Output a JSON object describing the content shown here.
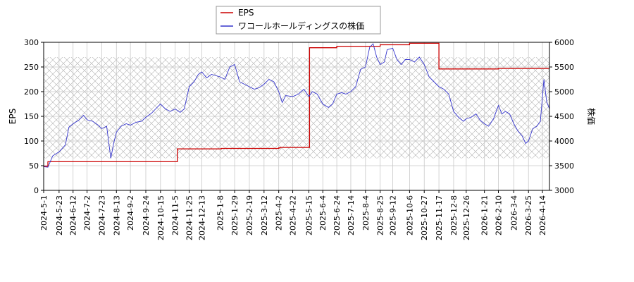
{
  "chart_data": {
    "type": "line",
    "legend": {
      "placement": "top-center",
      "entries": [
        {
          "label": "EPS",
          "color": "#cc0000"
        },
        {
          "label": "ワコールホールディングスの株価",
          "color": "#3333cc"
        }
      ]
    },
    "left_axis": {
      "label": "EPS",
      "ylim": [
        0,
        300
      ],
      "ticks": [
        "0",
        "50",
        "100",
        "150",
        "200",
        "250",
        "300"
      ]
    },
    "right_axis": {
      "label": "株価",
      "ylim": [
        3000,
        6000
      ],
      "ticks": [
        "3000",
        "3500",
        "4000",
        "4500",
        "5000",
        "5500",
        "6000"
      ]
    },
    "shaded_range": {
      "y_from": 65,
      "y_to": 270,
      "axis": "left"
    },
    "x_ticks": [
      "2024-5-1",
      "2024-5-23",
      "2024-6-12",
      "2024-7-2",
      "2024-7-23",
      "2024-8-13",
      "2024-9-2",
      "2024-9-24",
      "2024-10-15",
      "2024-11-5",
      "2024-11-25",
      "2024-12-13",
      "2025-1-8",
      "2025-1-29",
      "2025-2-19",
      "2025-3-12",
      "2025-4-2",
      "2025-4-22",
      "2025-5-15",
      "2025-6-4",
      "2025-6-24",
      "2025-7-14",
      "2025-8-4",
      "2025-8-25",
      "2025-9-12",
      "2025-10-6",
      "2025-10-27",
      "2025-11-17",
      "2025-12-8",
      "2025-12-26",
      "2026-1-21",
      "2026-2-10",
      "2026-3-4",
      "2026-3-25",
      "2026-4-14"
    ],
    "series": [
      {
        "name": "EPS",
        "axis": "left",
        "color": "#cc0000",
        "step": true,
        "points": [
          [
            "2024-5-1",
            49
          ],
          [
            "2024-5-7",
            58
          ],
          [
            "2024-11-5",
            58
          ],
          [
            "2024-11-8",
            84
          ],
          [
            "2025-1-8",
            84
          ],
          [
            "2025-1-10",
            85
          ],
          [
            "2025-4-2",
            86
          ],
          [
            "2025-4-4",
            87
          ],
          [
            "2025-5-15",
            87
          ],
          [
            "2025-5-16",
            289
          ],
          [
            "2025-6-24",
            292
          ],
          [
            "2025-8-25",
            295
          ],
          [
            "2025-10-6",
            298
          ],
          [
            "2025-11-14",
            298
          ],
          [
            "2025-11-17",
            246
          ],
          [
            "2026-2-10",
            247
          ],
          [
            "2026-4-24",
            246
          ]
        ]
      },
      {
        "name": "ワコールホールディングスの株価",
        "axis": "right",
        "color": "#3333cc",
        "step": false,
        "points": [
          [
            "2024-5-1",
            3480
          ],
          [
            "2024-5-7",
            3470
          ],
          [
            "2024-5-14",
            3700
          ],
          [
            "2024-5-23",
            3780
          ],
          [
            "2024-6-1",
            3920
          ],
          [
            "2024-6-6",
            4280
          ],
          [
            "2024-6-12",
            4350
          ],
          [
            "2024-6-20",
            4420
          ],
          [
            "2024-6-27",
            4520
          ],
          [
            "2024-7-2",
            4430
          ],
          [
            "2024-7-10",
            4400
          ],
          [
            "2024-7-18",
            4320
          ],
          [
            "2024-7-23",
            4250
          ],
          [
            "2024-7-30",
            4300
          ],
          [
            "2024-8-5",
            3650
          ],
          [
            "2024-8-9",
            3950
          ],
          [
            "2024-8-13",
            4180
          ],
          [
            "2024-8-20",
            4300
          ],
          [
            "2024-8-27",
            4350
          ],
          [
            "2024-9-2",
            4320
          ],
          [
            "2024-9-10",
            4380
          ],
          [
            "2024-9-18",
            4400
          ],
          [
            "2024-9-24",
            4480
          ],
          [
            "2024-10-2",
            4560
          ],
          [
            "2024-10-8",
            4650
          ],
          [
            "2024-10-15",
            4750
          ],
          [
            "2024-10-22",
            4650
          ],
          [
            "2024-10-29",
            4600
          ],
          [
            "2024-11-5",
            4650
          ],
          [
            "2024-11-12",
            4580
          ],
          [
            "2024-11-18",
            4650
          ],
          [
            "2024-11-25",
            5100
          ],
          [
            "2024-12-2",
            5200
          ],
          [
            "2024-12-8",
            5350
          ],
          [
            "2024-12-13",
            5400
          ],
          [
            "2024-12-20",
            5280
          ],
          [
            "2024-12-27",
            5350
          ],
          [
            "2025-1-8",
            5300
          ],
          [
            "2025-1-15",
            5250
          ],
          [
            "2025-1-22",
            5500
          ],
          [
            "2025-1-29",
            5550
          ],
          [
            "2025-2-5",
            5200
          ],
          [
            "2025-2-12",
            5150
          ],
          [
            "2025-2-19",
            5100
          ],
          [
            "2025-2-26",
            5050
          ],
          [
            "2025-3-5",
            5080
          ],
          [
            "2025-3-12",
            5150
          ],
          [
            "2025-3-19",
            5250
          ],
          [
            "2025-3-26",
            5200
          ],
          [
            "2025-4-2",
            5000
          ],
          [
            "2025-4-7",
            4780
          ],
          [
            "2025-4-12",
            4920
          ],
          [
            "2025-4-22",
            4900
          ],
          [
            "2025-4-30",
            4950
          ],
          [
            "2025-5-8",
            5050
          ],
          [
            "2025-5-15",
            4900
          ],
          [
            "2025-5-20",
            5000
          ],
          [
            "2025-5-27",
            4950
          ],
          [
            "2025-6-4",
            4750
          ],
          [
            "2025-6-12",
            4680
          ],
          [
            "2025-6-18",
            4750
          ],
          [
            "2025-6-24",
            4950
          ],
          [
            "2025-7-1",
            4980
          ],
          [
            "2025-7-7",
            4950
          ],
          [
            "2025-7-14",
            5000
          ],
          [
            "2025-7-21",
            5100
          ],
          [
            "2025-7-28",
            5450
          ],
          [
            "2025-8-4",
            5500
          ],
          [
            "2025-8-10",
            5900
          ],
          [
            "2025-8-15",
            5970
          ],
          [
            "2025-8-20",
            5700
          ],
          [
            "2025-8-25",
            5550
          ],
          [
            "2025-8-31",
            5600
          ],
          [
            "2025-9-4",
            5850
          ],
          [
            "2025-9-12",
            5880
          ],
          [
            "2025-9-18",
            5650
          ],
          [
            "2025-9-24",
            5550
          ],
          [
            "2025-9-30",
            5650
          ],
          [
            "2025-10-6",
            5650
          ],
          [
            "2025-10-13",
            5600
          ],
          [
            "2025-10-20",
            5700
          ],
          [
            "2025-10-27",
            5550
          ],
          [
            "2025-11-3",
            5300
          ],
          [
            "2025-11-10",
            5200
          ],
          [
            "2025-11-17",
            5100
          ],
          [
            "2025-11-24",
            5050
          ],
          [
            "2025-12-1",
            4950
          ],
          [
            "2025-12-8",
            4600
          ],
          [
            "2025-12-15",
            4480
          ],
          [
            "2025-12-22",
            4400
          ],
          [
            "2025-12-26",
            4450
          ],
          [
            "2026-1-2",
            4480
          ],
          [
            "2026-1-9",
            4550
          ],
          [
            "2026-1-15",
            4420
          ],
          [
            "2026-1-21",
            4350
          ],
          [
            "2026-1-27",
            4300
          ],
          [
            "2026-2-3",
            4450
          ],
          [
            "2026-2-10",
            4720
          ],
          [
            "2026-2-15",
            4550
          ],
          [
            "2026-2-20",
            4600
          ],
          [
            "2026-2-26",
            4550
          ],
          [
            "2026-3-4",
            4350
          ],
          [
            "2026-3-10",
            4200
          ],
          [
            "2026-3-16",
            4100
          ],
          [
            "2026-3-21",
            3950
          ],
          [
            "2026-3-25",
            4000
          ],
          [
            "2026-3-31",
            4250
          ],
          [
            "2026-4-6",
            4300
          ],
          [
            "2026-4-11",
            4400
          ],
          [
            "2026-4-16",
            5250
          ],
          [
            "2026-4-20",
            4800
          ],
          [
            "2026-4-24",
            4650
          ]
        ]
      }
    ]
  }
}
